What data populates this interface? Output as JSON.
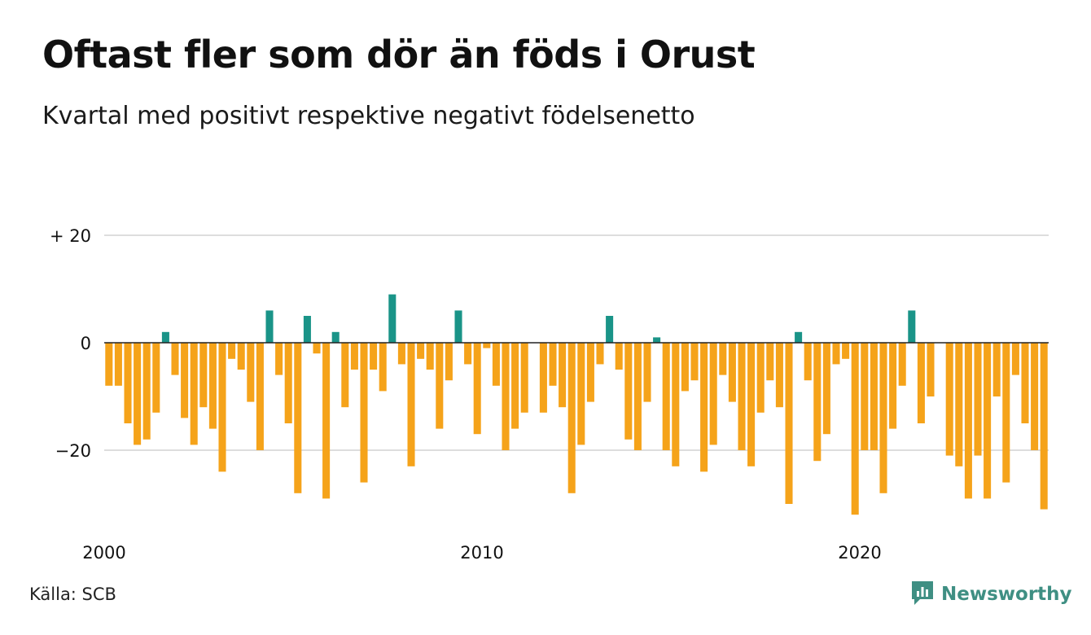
{
  "title": "Oftast fler som dör än föds i Orust",
  "subtitle": "Kvartal med positivt respektive negativt födelsenetto",
  "source": "Källa: SCB",
  "logo_text": "Newsworthy",
  "colors": {
    "positive": "#1a9488",
    "negative": "#f5a31a",
    "grid": "#dddddd",
    "zero_line": "#222222",
    "logo": "#3f8f83"
  },
  "chart_data": {
    "type": "bar",
    "ylim": [
      -32,
      20
    ],
    "y_ticks": [
      {
        "value": 20,
        "label": "+ 20"
      },
      {
        "value": 0,
        "label": "0"
      },
      {
        "value": -20,
        "label": "−20"
      }
    ],
    "x_ticks": [
      {
        "value": 2000,
        "label": "2000"
      },
      {
        "value": 2010,
        "label": "2010"
      },
      {
        "value": 2020,
        "label": "2020"
      }
    ],
    "x_start": "2000 Q1",
    "x_end": "2024 Q4",
    "values": [
      -8,
      -8,
      -15,
      -19,
      -18,
      -13,
      2,
      -6,
      -14,
      -19,
      -12,
      -16,
      -24,
      -3,
      -5,
      -11,
      -20,
      6,
      -6,
      -15,
      -28,
      5,
      -2,
      -29,
      2,
      -12,
      -5,
      -26,
      -5,
      -9,
      9,
      -4,
      -23,
      -3,
      -5,
      -16,
      -7,
      6,
      -4,
      -17,
      -1,
      -8,
      -20,
      -16,
      -13,
      0,
      -13,
      -8,
      -12,
      -28,
      -19,
      -11,
      -4,
      5,
      -5,
      -18,
      -20,
      -11,
      1,
      -20,
      -23,
      -9,
      -7,
      -24,
      -19,
      -6,
      -11,
      -20,
      -23,
      -13,
      -7,
      -12,
      -30,
      2,
      -7,
      -22,
      -17,
      -4,
      -3,
      -32,
      -20,
      -20,
      -28,
      -16,
      -8,
      6,
      -15,
      -10,
      0,
      -21,
      -23,
      -29,
      -21,
      -29,
      -10,
      -26,
      -6,
      -15,
      -20,
      -31
    ]
  }
}
